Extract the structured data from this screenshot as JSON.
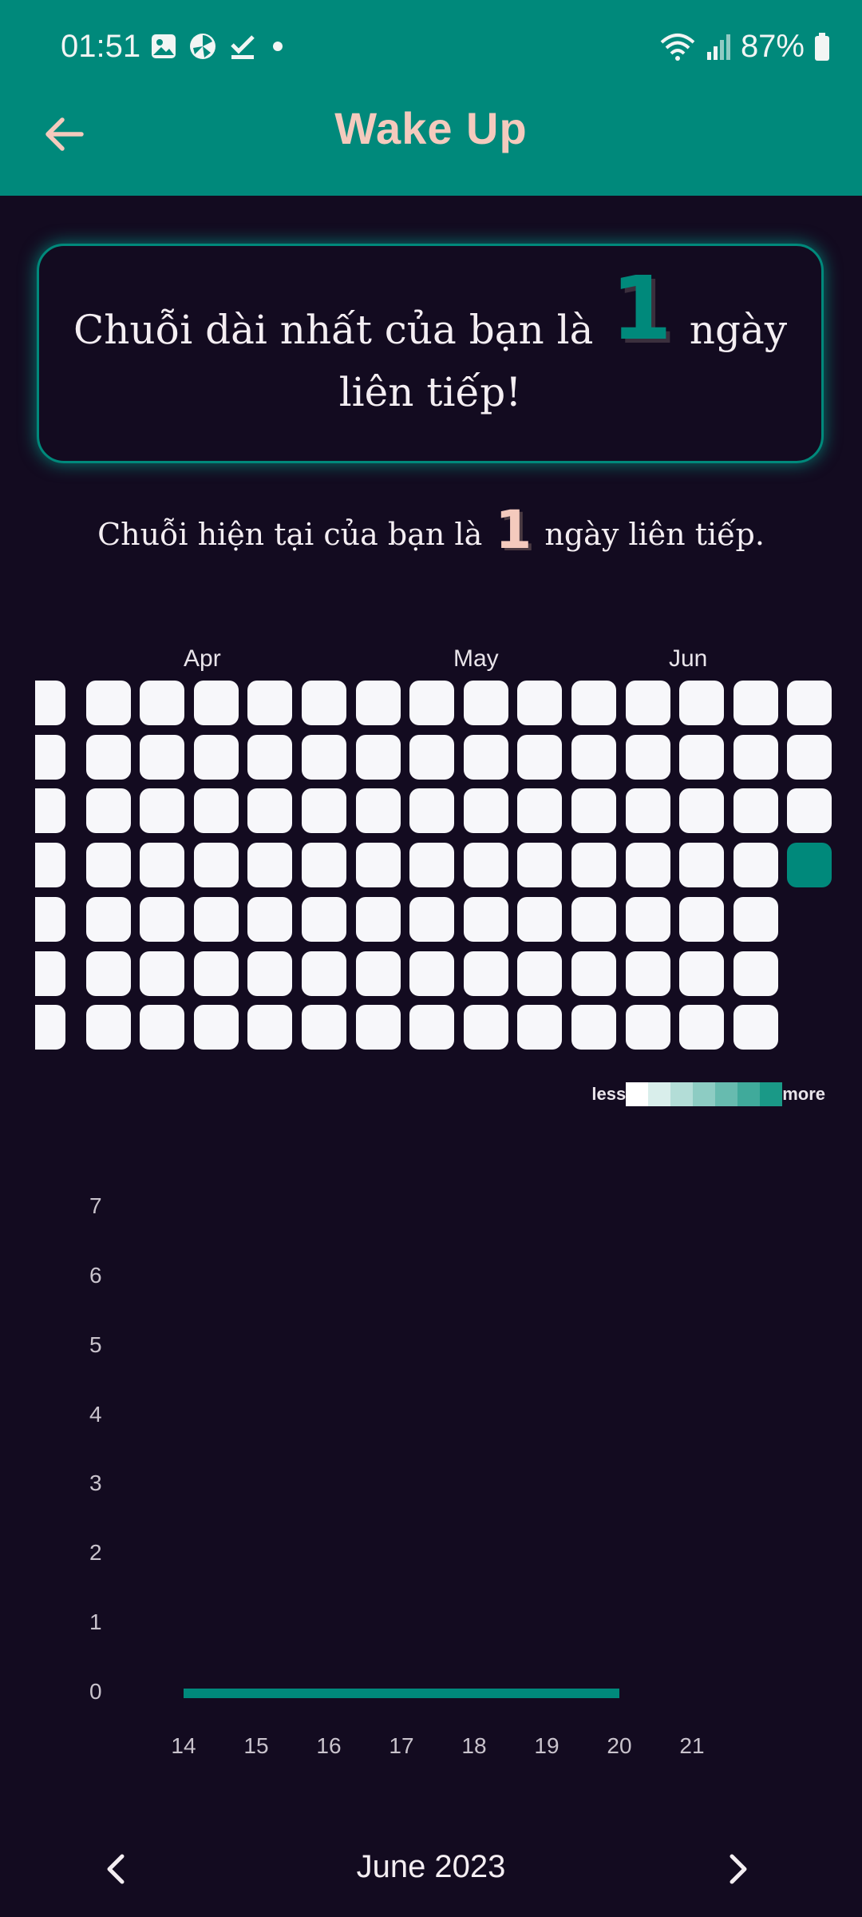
{
  "status_bar": {
    "time": "01:51",
    "battery": "87%",
    "icons": [
      "gallery-icon",
      "pinwheel-icon",
      "check-download-icon",
      "dot-icon",
      "wifi-icon",
      "signal-icon",
      "battery-icon"
    ]
  },
  "header": {
    "title": "Wake Up",
    "back_icon": "arrow-left-icon"
  },
  "longest_streak": {
    "prefix": "Chuỗi dài nhất của bạn là",
    "value": "1",
    "suffix": "ngày liên tiếp!"
  },
  "current_streak": {
    "prefix": "Chuỗi hiện tại của bạn là",
    "value": "1",
    "suffix": "ngày liên tiếp."
  },
  "heatmap": {
    "months": [
      "Apr",
      "May",
      "Jun"
    ],
    "columns": 15,
    "rows": 7,
    "last_column_rows": 4,
    "active_cells": [
      {
        "col": 14,
        "row": 3,
        "level": 5
      }
    ],
    "legend_less": "less",
    "legend_more": "more",
    "legend_colors": [
      "#ffffff",
      "#d9eeeb",
      "#b3ddd7",
      "#8dccc3",
      "#67bbaf",
      "#40aa9b",
      "#1a9987"
    ],
    "empty_color": "#f7f7fa",
    "active_color": "#00897b"
  },
  "chart_data": {
    "type": "line",
    "x": [
      "14",
      "15",
      "16",
      "17",
      "18",
      "19",
      "20"
    ],
    "x_ticks": [
      "14",
      "15",
      "16",
      "17",
      "18",
      "19",
      "20",
      "21"
    ],
    "series": [
      {
        "values": [
          0,
          0,
          0,
          0,
          0,
          0,
          0
        ],
        "color": "#00897b"
      }
    ],
    "y_ticks": [
      "0",
      "1",
      "2",
      "3",
      "4",
      "5",
      "6",
      "7"
    ],
    "ylim": [
      0,
      7
    ],
    "grid": false
  },
  "navigation": {
    "month": "June 2023",
    "prev_icon": "chevron-left-icon",
    "next_icon": "chevron-right-icon"
  }
}
